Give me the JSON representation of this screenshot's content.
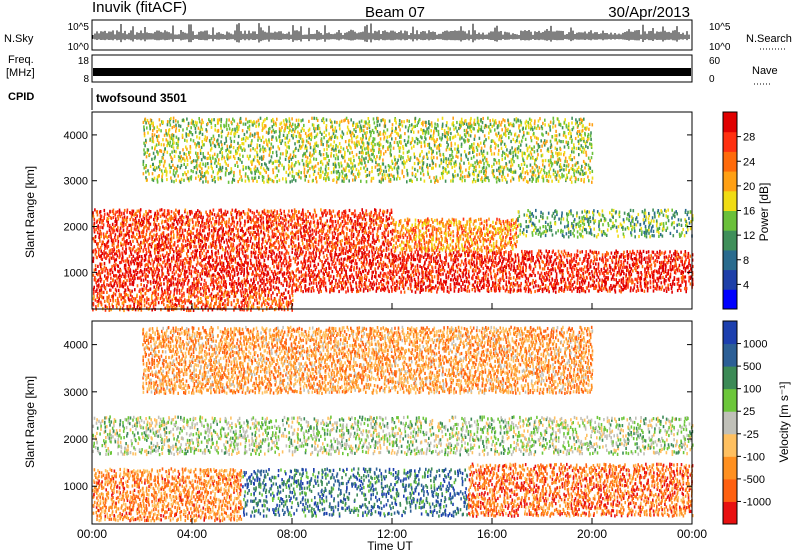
{
  "header": {
    "station": "Inuvik (fitACF)",
    "beam": "Beam 07",
    "date": "30/Apr/2013"
  },
  "nsky_panel": {
    "left_label": "N.Sky",
    "right_label": "N.Search",
    "left_ticks": [
      "10^5",
      "10^0"
    ],
    "right_ticks": [
      "10^5",
      "10^0"
    ]
  },
  "freq_panel": {
    "left_label_1": "Freq.",
    "left_label_2": "[MHz]",
    "right_label": "Nave",
    "left_ticks": [
      "18",
      "8"
    ],
    "right_ticks": [
      "60",
      "0"
    ]
  },
  "cpid_panel": {
    "label": "CPID",
    "program": "twofsound 3501"
  },
  "chart_data": [
    {
      "type": "heatmap",
      "name": "power",
      "ylabel": "Slant Range [km]",
      "ylim": [
        200,
        4500
      ],
      "yticks": [
        1000,
        2000,
        3000,
        4000
      ],
      "xlim_hours": [
        0,
        24
      ],
      "colorbar": {
        "label": "Power [dB]",
        "ticks": [
          "4",
          "8",
          "12",
          "16",
          "20",
          "24",
          "28"
        ],
        "colors": [
          "#0000ff",
          "#1e3fa8",
          "#2a6b8e",
          "#3f8f5a",
          "#6ac03a",
          "#f0dc14",
          "#ffa014",
          "#ff6a0a",
          "#ff3010",
          "#e00000"
        ]
      },
      "bands": [
        {
          "t0": 0,
          "t1": 24,
          "r0": 600,
          "r1": 1500,
          "level": 0.9
        },
        {
          "t0": 0,
          "t1": 12,
          "r0": 1500,
          "r1": 2400,
          "level": 0.85
        },
        {
          "t0": 12,
          "t1": 17,
          "r0": 1500,
          "r1": 2200,
          "level": 0.7
        },
        {
          "t0": 0,
          "t1": 8,
          "r0": 200,
          "r1": 600,
          "level": 0.8
        },
        {
          "t0": 17,
          "t1": 24,
          "r0": 1800,
          "r1": 2400,
          "level": 0.4
        },
        {
          "t0": 2,
          "t1": 20,
          "r0": 3000,
          "r1": 4400,
          "level": 0.5
        }
      ]
    },
    {
      "type": "heatmap",
      "name": "velocity",
      "ylabel": "Slant Range [km]",
      "xlabel": "Time UT",
      "ylim": [
        200,
        4500
      ],
      "yticks": [
        1000,
        2000,
        3000,
        4000
      ],
      "xlim_hours": [
        0,
        24
      ],
      "xticks": [
        "00:00",
        "04:00",
        "08:00",
        "12:00",
        "16:00",
        "20:00",
        "00:00"
      ],
      "colorbar": {
        "label": "Velocity [m s⁻¹]",
        "ticks": [
          "1000",
          "500",
          "100",
          "25",
          "-25",
          "-100",
          "-500",
          "-1000"
        ],
        "colors": [
          "#1c3fae",
          "#2c5f96",
          "#3c8a56",
          "#6cc63a",
          "#c0c0b8",
          "#ffc060",
          "#ff9020",
          "#ff6010",
          "#e81010"
        ]
      },
      "bands": [
        {
          "t0": 0,
          "t1": 24,
          "r0": 1700,
          "r1": 2500,
          "level": 0.45
        },
        {
          "t0": 0,
          "t1": 6,
          "r0": 300,
          "r1": 1400,
          "level": 0.75
        },
        {
          "t0": 6,
          "t1": 15,
          "r0": 400,
          "r1": 1400,
          "level": 0.2
        },
        {
          "t0": 15,
          "t1": 24,
          "r0": 400,
          "r1": 1500,
          "level": 0.8
        },
        {
          "t0": 2,
          "t1": 20,
          "r0": 3000,
          "r1": 4400,
          "level": 0.7
        }
      ]
    }
  ]
}
